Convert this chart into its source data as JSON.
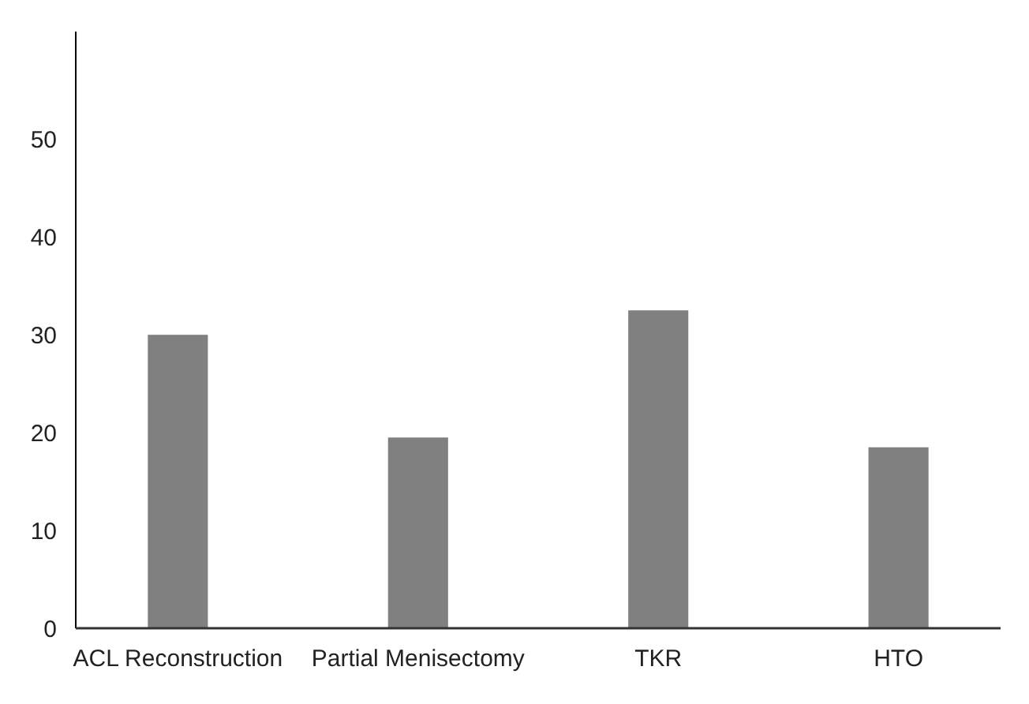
{
  "chart_data": {
    "type": "bar",
    "categories": [
      "ACL Reconstruction",
      "Partial Menisectomy",
      "TKR",
      "HTO"
    ],
    "values": [
      30,
      19.5,
      32.5,
      18.5
    ],
    "color": "#808080",
    "ylim": [
      0,
      61
    ],
    "yticks": [
      0,
      10,
      20,
      30,
      40,
      50
    ],
    "grid": false
  }
}
